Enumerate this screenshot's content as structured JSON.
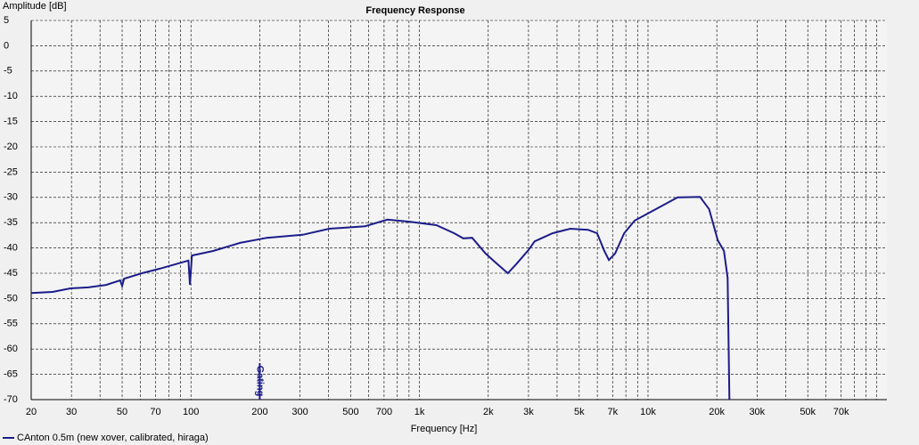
{
  "chart_data": {
    "type": "line",
    "title": "Frequency Response",
    "y_label": "Amplitude [dB]",
    "x_label": "Frequency [Hz]",
    "log_x": true,
    "grid": true,
    "xlim": [
      20,
      111000
    ],
    "ylim": [
      -70,
      5
    ],
    "xticks": [
      20,
      30,
      50,
      70,
      100,
      200,
      300,
      500,
      700,
      {
        "value": 1000,
        "label": "1k"
      },
      {
        "value": 2000,
        "label": "2k"
      },
      {
        "value": 3000,
        "label": "3k"
      },
      {
        "value": 5000,
        "label": "5k"
      },
      {
        "value": 7000,
        "label": "7k"
      },
      {
        "value": 10000,
        "label": "10k"
      },
      {
        "value": 20000,
        "label": "20k"
      },
      {
        "value": 30000,
        "label": "30k"
      },
      {
        "value": 50000,
        "label": "50k"
      },
      {
        "value": 70000,
        "label": "70k"
      }
    ],
    "xminor_ticks": [
      40,
      60,
      80,
      90,
      400,
      600,
      800,
      900,
      4000,
      6000,
      8000,
      9000,
      40000,
      60000,
      80000,
      90000,
      100000
    ],
    "yticks": [
      5,
      0,
      -5,
      -10,
      -15,
      -20,
      -25,
      -30,
      -35,
      -40,
      -45,
      -50,
      -55,
      -60,
      -65,
      -70
    ],
    "x": [
      20,
      24.8,
      29.7,
      35.6,
      42.6,
      49,
      50,
      51,
      61,
      73,
      87.5,
      97.5,
      99,
      101,
      125,
      164,
      215,
      308,
      403,
      578,
      723,
      906,
      1186,
      1420,
      1554,
      1700,
      1945,
      2129,
      2435,
      2665,
      3000,
      3192,
      3820,
      4570,
      5470,
      5990,
      6440,
      6740,
      7180,
      7860,
      8740,
      10260,
      13480,
      16880,
      18500,
      20200,
      21500,
      22300,
      22700
    ],
    "series": [
      {
        "name": "CAnton 0.5m (new xover, calibrated, hiraga)",
        "color": "#1c1c8a",
        "values": [
          -48.9,
          -48.7,
          -48,
          -47.8,
          -47.3,
          -46.4,
          -47.5,
          -46.1,
          -45,
          -44.1,
          -43.1,
          -42.5,
          -47.3,
          -41.5,
          -40.6,
          -39,
          -38,
          -37.4,
          -36.2,
          -35.7,
          -34.4,
          -34.8,
          -35.5,
          -37.1,
          -38.1,
          -38,
          -41.1,
          -42.7,
          -45,
          -43.1,
          -40.4,
          -38.7,
          -37.1,
          -36.2,
          -36.4,
          -37.1,
          -40.6,
          -42.4,
          -41.1,
          -37.1,
          -34.6,
          -32.9,
          -30,
          -29.9,
          -32.3,
          -38.5,
          -40.6,
          -45.9,
          -70
        ]
      }
    ],
    "annotations": [
      {
        "text": "Gating",
        "x": 200
      }
    ]
  }
}
